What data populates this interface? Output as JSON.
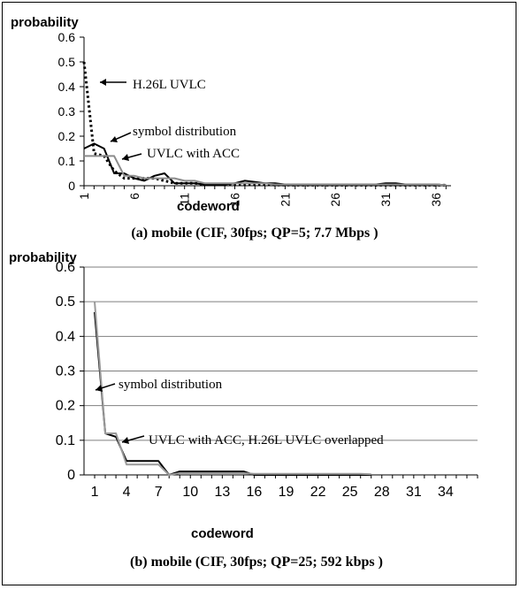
{
  "chart_data": [
    {
      "type": "line",
      "ylabel": "probability",
      "xlabel": "codeword",
      "caption": "(a) mobile (CIF, 30fps; QP=5; 7.7 Mbps )",
      "ylim": [
        0,
        0.6
      ],
      "yticks": [
        "0",
        "0.1",
        "0.2",
        "0.3",
        "0.4",
        "0.5",
        "0.6"
      ],
      "x": [
        1,
        2,
        3,
        4,
        5,
        6,
        7,
        8,
        9,
        10,
        11,
        12,
        13,
        14,
        15,
        16,
        17,
        18,
        19,
        20,
        21,
        22,
        23,
        24,
        25,
        26,
        27,
        28,
        29,
        30,
        31,
        32,
        33,
        34,
        35,
        36,
        37
      ],
      "xticks": [
        "1",
        "6",
        "11",
        "16",
        "21",
        "26",
        "31",
        "36"
      ],
      "series": [
        {
          "name": "H.26L UVLC",
          "style": "dotted",
          "color": "#000000",
          "values": [
            0.5,
            0.13,
            0.12,
            0.06,
            0.03,
            0.03,
            0.03,
            0.03,
            0.02,
            0.01,
            0.01,
            0.01,
            0.005,
            0.005,
            0.005,
            0.005,
            0.005,
            0.005,
            0.005,
            0.003,
            0.003,
            0.002,
            0.002,
            0.002,
            0.002,
            0.002,
            0.002,
            0.002,
            0.002,
            0.002,
            0.002,
            0.002,
            0.002,
            0.002,
            0.002,
            0.002,
            0.002
          ]
        },
        {
          "name": "symbol distribution",
          "style": "solid",
          "color": "#000000",
          "values": [
            0.15,
            0.17,
            0.15,
            0.05,
            0.05,
            0.03,
            0.02,
            0.04,
            0.05,
            0.01,
            0.01,
            0.01,
            0.005,
            0.005,
            0.005,
            0.01,
            0.02,
            0.015,
            0.01,
            0.01,
            0.005,
            0.005,
            0.005,
            0.005,
            0.005,
            0.005,
            0.005,
            0.005,
            0.005,
            0.005,
            0.01,
            0.01,
            0.005,
            0.005,
            0.005,
            0.005,
            0.002
          ]
        },
        {
          "name": "UVLC with ACC",
          "style": "solid",
          "color": "#8c8c8c",
          "values": [
            0.12,
            0.12,
            0.12,
            0.12,
            0.04,
            0.04,
            0.03,
            0.03,
            0.03,
            0.03,
            0.02,
            0.02,
            0.01,
            0.01,
            0.01,
            0.01,
            0.01,
            0.01,
            0.01,
            0.005,
            0.005,
            0.005,
            0.005,
            0.005,
            0.005,
            0.005,
            0.005,
            0.005,
            0.005,
            0.005,
            0.005,
            0.005,
            0.005,
            0.005,
            0.005,
            0.005,
            0.002
          ]
        }
      ],
      "annotations": [
        "H.26L UVLC",
        "symbol distribution",
        "UVLC with ACC"
      ]
    },
    {
      "type": "line",
      "ylabel": "probability",
      "xlabel": "codeword",
      "caption": "(b) mobile (CIF, 30fps; QP=25; 592 kbps )",
      "ylim": [
        0,
        0.6
      ],
      "yticks": [
        "0",
        "0.1",
        "0.2",
        "0.3",
        "0.4",
        "0.5",
        "0.6"
      ],
      "x": [
        1,
        2,
        3,
        4,
        5,
        6,
        7,
        8,
        9,
        10,
        11,
        12,
        13,
        14,
        15,
        16,
        17,
        18,
        19,
        20,
        21,
        22,
        23,
        24,
        25,
        26,
        27
      ],
      "xticks": [
        "1",
        "4",
        "7",
        "10",
        "13",
        "16",
        "19",
        "22",
        "25",
        "28",
        "31",
        "34"
      ],
      "series": [
        {
          "name": "symbol distribution",
          "style": "solid",
          "color": "#000000",
          "values": [
            0.47,
            0.12,
            0.11,
            0.04,
            0.04,
            0.04,
            0.04,
            0.0,
            0.01,
            0.01,
            0.01,
            0.01,
            0.01,
            0.01,
            0.01,
            0.0,
            0.0,
            0.0,
            0.0,
            0.0,
            0.0,
            0.0,
            0.0,
            0.0,
            0.0,
            0.0,
            0.0
          ]
        },
        {
          "name": "UVLC with ACC, H.26L UVLC overlapped",
          "style": "solid",
          "color": "#9a9a9a",
          "values": [
            0.5,
            0.12,
            0.12,
            0.03,
            0.03,
            0.03,
            0.03,
            0.0,
            0.005,
            0.005,
            0.005,
            0.005,
            0.005,
            0.005,
            0.005,
            0.003,
            0.003,
            0.003,
            0.003,
            0.003,
            0.003,
            0.003,
            0.003,
            0.003,
            0.003,
            0.003,
            0.002
          ]
        }
      ],
      "annotations": [
        "symbol distribution",
        "UVLC with ACC, H.26L UVLC overlapped"
      ]
    }
  ]
}
